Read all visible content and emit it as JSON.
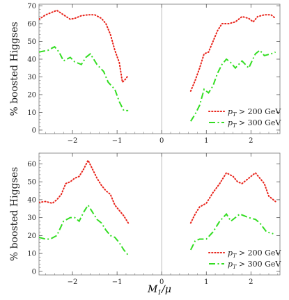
{
  "chart_data": [
    {
      "type": "line",
      "ylabel": "% boosted Higgses",
      "xlabel": "",
      "xlim": [
        -2.75,
        2.65
      ],
      "ylim": [
        -2,
        71
      ],
      "x_ticks": [
        "−2",
        "−1",
        "0",
        "1",
        "2"
      ],
      "y_ticks": [
        "0",
        "10",
        "20",
        "30",
        "40",
        "50",
        "60",
        "70"
      ],
      "legend_position": "bottom-right",
      "series": [
        {
          "name": "p_T > 200 GeV",
          "color": "#e8231a",
          "style": "dotted",
          "segments": [
            [
              [
                -2.75,
                62.5
              ],
              [
                -2.6,
                65
              ],
              [
                -2.45,
                66.5
              ],
              [
                -2.35,
                67.5
              ],
              [
                -2.2,
                65
              ],
              [
                -2.05,
                62.5
              ],
              [
                -1.95,
                63
              ],
              [
                -1.8,
                64.5
              ],
              [
                -1.65,
                65
              ],
              [
                -1.5,
                65
              ],
              [
                -1.35,
                63
              ],
              [
                -1.25,
                60
              ],
              [
                -1.15,
                54
              ],
              [
                -1.05,
                45
              ],
              [
                -0.95,
                38
              ],
              [
                -0.88,
                27
              ],
              [
                -0.8,
                29
              ],
              [
                -0.75,
                31
              ]
            ],
            [
              [
                0.65,
                22
              ],
              [
                0.75,
                28
              ],
              [
                0.85,
                35
              ],
              [
                0.95,
                43
              ],
              [
                1.05,
                44
              ],
              [
                1.15,
                50
              ],
              [
                1.25,
                56
              ],
              [
                1.35,
                60
              ],
              [
                1.5,
                60
              ],
              [
                1.65,
                61
              ],
              [
                1.8,
                64
              ],
              [
                1.95,
                63
              ],
              [
                2.05,
                61
              ],
              [
                2.15,
                64
              ],
              [
                2.3,
                65
              ],
              [
                2.45,
                65
              ],
              [
                2.55,
                63
              ]
            ]
          ]
        },
        {
          "name": "p_T > 300 GeV",
          "color": "#33dd22",
          "style": "dashdot",
          "segments": [
            [
              [
                -2.75,
                44
              ],
              [
                -2.55,
                45
              ],
              [
                -2.4,
                47
              ],
              [
                -2.3,
                44
              ],
              [
                -2.2,
                39
              ],
              [
                -2.05,
                41
              ],
              [
                -1.95,
                38.5
              ],
              [
                -1.8,
                37
              ],
              [
                -1.7,
                41
              ],
              [
                -1.6,
                43
              ],
              [
                -1.45,
                37
              ],
              [
                -1.3,
                33
              ],
              [
                -1.2,
                27
              ],
              [
                -1.05,
                23
              ],
              [
                -0.95,
                16
              ],
              [
                -0.85,
                11
              ],
              [
                -0.75,
                11
              ]
            ],
            [
              [
                0.65,
                5
              ],
              [
                0.75,
                9
              ],
              [
                0.85,
                14
              ],
              [
                0.95,
                23
              ],
              [
                1.05,
                21
              ],
              [
                1.15,
                25
              ],
              [
                1.25,
                32
              ],
              [
                1.35,
                37
              ],
              [
                1.45,
                40
              ],
              [
                1.55,
                38
              ],
              [
                1.65,
                35
              ],
              [
                1.8,
                39
              ],
              [
                1.95,
                35
              ],
              [
                2.1,
                43
              ],
              [
                2.2,
                45
              ],
              [
                2.3,
                42
              ],
              [
                2.45,
                43
              ],
              [
                2.55,
                44
              ]
            ]
          ]
        }
      ]
    },
    {
      "type": "line",
      "ylabel": "% boosted Higgses",
      "xlabel": "M1/μ",
      "xlim": [
        -2.75,
        2.65
      ],
      "ylim": [
        -2,
        66
      ],
      "x_ticks": [
        "−2",
        "−1",
        "0",
        "1",
        "2"
      ],
      "y_ticks": [
        "0",
        "10",
        "20",
        "30",
        "40",
        "50",
        "60"
      ],
      "legend_position": "bottom-right",
      "series": [
        {
          "name": "p_T > 200 GeV",
          "color": "#e8231a",
          "style": "dotted",
          "segments": [
            [
              [
                -2.75,
                38.5
              ],
              [
                -2.6,
                39
              ],
              [
                -2.45,
                38
              ],
              [
                -2.35,
                40
              ],
              [
                -2.25,
                43
              ],
              [
                -2.15,
                49
              ],
              [
                -2.05,
                50
              ],
              [
                -1.95,
                52
              ],
              [
                -1.85,
                53
              ],
              [
                -1.75,
                57
              ],
              [
                -1.65,
                62
              ],
              [
                -1.55,
                57
              ],
              [
                -1.45,
                52
              ],
              [
                -1.35,
                48
              ],
              [
                -1.25,
                45
              ],
              [
                -1.15,
                43
              ],
              [
                -1.05,
                37
              ],
              [
                -0.95,
                34
              ],
              [
                -0.85,
                31
              ],
              [
                -0.75,
                27
              ]
            ],
            [
              [
                0.65,
                27
              ],
              [
                0.75,
                32
              ],
              [
                0.85,
                36
              ],
              [
                1.0,
                38
              ],
              [
                1.15,
                44
              ],
              [
                1.3,
                49
              ],
              [
                1.45,
                55
              ],
              [
                1.6,
                53
              ],
              [
                1.7,
                50
              ],
              [
                1.8,
                49
              ],
              [
                1.9,
                51
              ],
              [
                2.0,
                53
              ],
              [
                2.1,
                55
              ],
              [
                2.2,
                52
              ],
              [
                2.3,
                49
              ],
              [
                2.4,
                42
              ],
              [
                2.55,
                39
              ]
            ]
          ]
        },
        {
          "name": "p_T > 300 GeV",
          "color": "#33dd22",
          "style": "dashdot",
          "segments": [
            [
              [
                -2.75,
                19
              ],
              [
                -2.6,
                18
              ],
              [
                -2.5,
                18
              ],
              [
                -2.35,
                20
              ],
              [
                -2.2,
                28
              ],
              [
                -2.05,
                30
              ],
              [
                -1.95,
                30
              ],
              [
                -1.85,
                28
              ],
              [
                -1.75,
                33
              ],
              [
                -1.65,
                37
              ],
              [
                -1.55,
                33
              ],
              [
                -1.45,
                29
              ],
              [
                -1.35,
                27
              ],
              [
                -1.25,
                23
              ],
              [
                -1.15,
                20
              ],
              [
                -1.05,
                19
              ],
              [
                -0.95,
                16
              ],
              [
                -0.85,
                12
              ],
              [
                -0.75,
                9
              ]
            ],
            [
              [
                0.65,
                12
              ],
              [
                0.75,
                17
              ],
              [
                0.85,
                18
              ],
              [
                1.0,
                18
              ],
              [
                1.15,
                22
              ],
              [
                1.3,
                28
              ],
              [
                1.45,
                32
              ],
              [
                1.55,
                28
              ],
              [
                1.65,
                30
              ],
              [
                1.75,
                32
              ],
              [
                1.85,
                31
              ],
              [
                1.95,
                30
              ],
              [
                2.1,
                29
              ],
              [
                2.2,
                27
              ],
              [
                2.35,
                22
              ],
              [
                2.5,
                21
              ]
            ]
          ]
        }
      ]
    }
  ]
}
